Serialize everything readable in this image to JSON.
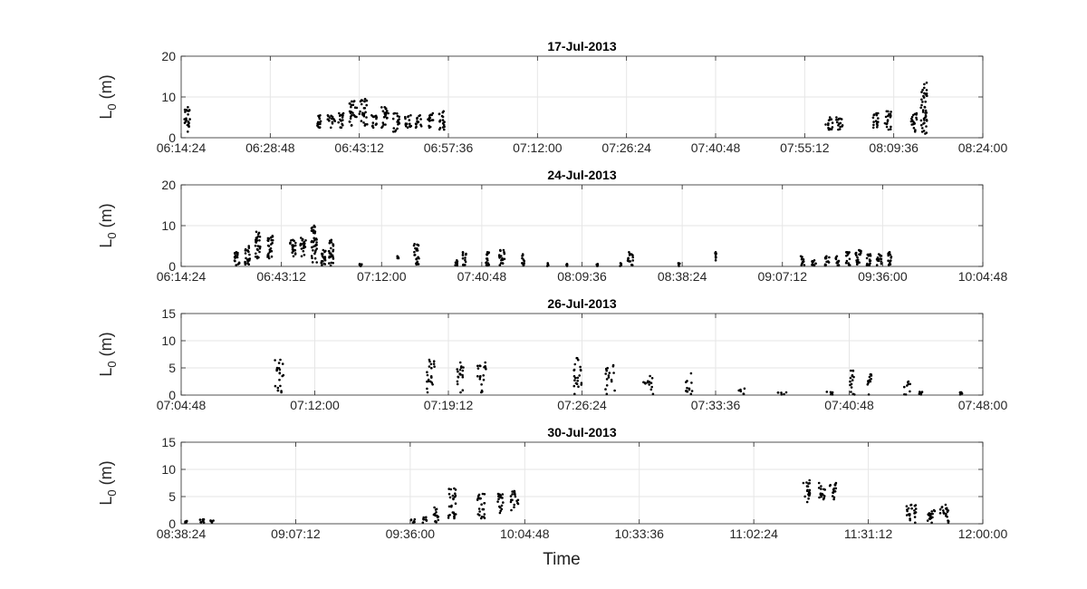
{
  "xlabel": "Time",
  "chart_data": [
    {
      "type": "scatter",
      "title": "17-Jul-2013",
      "ylabel_main": "L",
      "ylabel_sub": "0",
      "ylabel_unit": " (m)",
      "ylim": [
        0,
        20
      ],
      "yticks": [
        0,
        10,
        20
      ],
      "xlim": [
        "06:14:24",
        "08:24:00"
      ],
      "xticks": [
        "06:14:24",
        "06:28:48",
        "06:43:12",
        "06:57:36",
        "07:12:00",
        "07:26:24",
        "07:40:48",
        "07:55:12",
        "08:09:36",
        "08:24:00"
      ],
      "grid": true,
      "clusters": [
        {
          "t": "06:15:20",
          "w": 60,
          "ymin": 1.5,
          "ymax": 7.5
        },
        {
          "t": "06:36:40",
          "w": 60,
          "ymin": 2.5,
          "ymax": 5.5
        },
        {
          "t": "06:38:40",
          "w": 70,
          "ymin": 2.5,
          "ymax": 5.5
        },
        {
          "t": "06:40:20",
          "w": 60,
          "ymin": 2.5,
          "ymax": 6.0
        },
        {
          "t": "06:42:10",
          "w": 80,
          "ymin": 3.0,
          "ymax": 9.0
        },
        {
          "t": "06:43:50",
          "w": 80,
          "ymin": 3.0,
          "ymax": 9.5
        },
        {
          "t": "06:45:40",
          "w": 60,
          "ymin": 2.5,
          "ymax": 5.5
        },
        {
          "t": "06:47:20",
          "w": 70,
          "ymin": 2.5,
          "ymax": 7.5
        },
        {
          "t": "06:49:10",
          "w": 60,
          "ymin": 1.5,
          "ymax": 6.0
        },
        {
          "t": "06:51:10",
          "w": 70,
          "ymin": 2.5,
          "ymax": 5.5
        },
        {
          "t": "06:52:50",
          "w": 60,
          "ymin": 2.5,
          "ymax": 5.5
        },
        {
          "t": "06:54:40",
          "w": 60,
          "ymin": 2.5,
          "ymax": 6.0
        },
        {
          "t": "06:56:30",
          "w": 60,
          "ymin": 2.0,
          "ymax": 6.5
        },
        {
          "t": "07:59:10",
          "w": 70,
          "ymin": 2.0,
          "ymax": 5.0
        },
        {
          "t": "08:00:50",
          "w": 70,
          "ymin": 2.0,
          "ymax": 5.0
        },
        {
          "t": "08:06:40",
          "w": 60,
          "ymin": 2.5,
          "ymax": 6.0
        },
        {
          "t": "08:08:40",
          "w": 60,
          "ymin": 2.0,
          "ymax": 6.5
        },
        {
          "t": "08:12:50",
          "w": 60,
          "ymin": 1.5,
          "ymax": 6.0
        },
        {
          "t": "08:14:30",
          "w": 60,
          "ymin": 1.0,
          "ymax": 13.5
        }
      ]
    },
    {
      "type": "scatter",
      "title": "24-Jul-2013",
      "ylabel_main": "L",
      "ylabel_sub": "0",
      "ylabel_unit": " (m)",
      "ylim": [
        0,
        20
      ],
      "yticks": [
        0,
        10,
        20
      ],
      "xlim": [
        "06:14:24",
        "10:04:48"
      ],
      "xticks": [
        "06:14:24",
        "06:43:12",
        "07:12:00",
        "07:40:48",
        "08:09:36",
        "08:38:24",
        "09:07:12",
        "09:36:00",
        "10:04:48"
      ],
      "grid": true,
      "clusters": [
        {
          "t": "06:30:30",
          "w": 90,
          "ymin": 0.3,
          "ymax": 3.5
        },
        {
          "t": "06:33:30",
          "w": 90,
          "ymin": 0.5,
          "ymax": 5.0
        },
        {
          "t": "06:36:20",
          "w": 100,
          "ymin": 2.0,
          "ymax": 8.5
        },
        {
          "t": "06:40:00",
          "w": 90,
          "ymin": 2.0,
          "ymax": 7.5
        },
        {
          "t": "06:46:30",
          "w": 100,
          "ymin": 2.5,
          "ymax": 6.5
        },
        {
          "t": "06:49:30",
          "w": 100,
          "ymin": 2.5,
          "ymax": 7.0
        },
        {
          "t": "06:52:40",
          "w": 100,
          "ymin": 1.0,
          "ymax": 10.0
        },
        {
          "t": "06:55:10",
          "w": 90,
          "ymin": 0.3,
          "ymax": 4.0
        },
        {
          "t": "06:57:30",
          "w": 80,
          "ymin": 0.2,
          "ymax": 6.5
        },
        {
          "t": "07:06:00",
          "w": 40,
          "ymin": 0.1,
          "ymax": 0.6
        },
        {
          "t": "07:16:40",
          "w": 30,
          "ymin": 2.0,
          "ymax": 2.5
        },
        {
          "t": "07:22:00",
          "w": 100,
          "ymin": 0.5,
          "ymax": 5.5
        },
        {
          "t": "07:33:30",
          "w": 40,
          "ymin": 0.2,
          "ymax": 1.5
        },
        {
          "t": "07:35:50",
          "w": 60,
          "ymin": 0.3,
          "ymax": 3.5
        },
        {
          "t": "07:42:30",
          "w": 60,
          "ymin": 0.2,
          "ymax": 3.5
        },
        {
          "t": "07:46:30",
          "w": 100,
          "ymin": 0.3,
          "ymax": 4.0
        },
        {
          "t": "07:52:40",
          "w": 40,
          "ymin": 0.2,
          "ymax": 3.0
        },
        {
          "t": "07:59:40",
          "w": 30,
          "ymin": 0.1,
          "ymax": 0.8
        },
        {
          "t": "08:05:10",
          "w": 30,
          "ymin": 0.1,
          "ymax": 0.6
        },
        {
          "t": "08:14:00",
          "w": 30,
          "ymin": 0.1,
          "ymax": 0.6
        },
        {
          "t": "08:20:40",
          "w": 40,
          "ymin": 0.1,
          "ymax": 0.8
        },
        {
          "t": "08:23:30",
          "w": 90,
          "ymin": 0.3,
          "ymax": 3.5
        },
        {
          "t": "08:37:20",
          "w": 40,
          "ymin": 0.1,
          "ymax": 0.8
        },
        {
          "t": "08:48:00",
          "w": 30,
          "ymin": 1.5,
          "ymax": 3.5
        },
        {
          "t": "09:13:00",
          "w": 60,
          "ymin": 0.3,
          "ymax": 2.5
        },
        {
          "t": "09:16:10",
          "w": 80,
          "ymin": 0.2,
          "ymax": 1.5
        },
        {
          "t": "09:20:00",
          "w": 80,
          "ymin": 0.2,
          "ymax": 2.5
        },
        {
          "t": "09:23:00",
          "w": 60,
          "ymin": 0.2,
          "ymax": 2.5
        },
        {
          "t": "09:26:00",
          "w": 80,
          "ymin": 0.3,
          "ymax": 3.5
        },
        {
          "t": "09:29:00",
          "w": 100,
          "ymin": 0.5,
          "ymax": 4.0
        },
        {
          "t": "09:32:00",
          "w": 80,
          "ymin": 0.3,
          "ymax": 3.0
        },
        {
          "t": "09:35:00",
          "w": 80,
          "ymin": 0.3,
          "ymax": 3.0
        },
        {
          "t": "09:38:00",
          "w": 60,
          "ymin": 0.3,
          "ymax": 3.5
        }
      ]
    },
    {
      "type": "scatter",
      "title": "26-Jul-2013",
      "ylabel_main": "L",
      "ylabel_sub": "0",
      "ylabel_unit": " (m)",
      "ylim": [
        0,
        15
      ],
      "yticks": [
        0,
        5,
        10,
        15
      ],
      "xlim": [
        "07:04:48",
        "07:48:00"
      ],
      "xticks": [
        "07:04:48",
        "07:12:00",
        "07:19:12",
        "07:26:24",
        "07:33:36",
        "07:40:48",
        "07:48:00"
      ],
      "grid": true,
      "clusters": [
        {
          "t": "07:10:05",
          "w": 30,
          "ymin": 0.5,
          "ymax": 6.5
        },
        {
          "t": "07:18:15",
          "w": 25,
          "ymin": 0.5,
          "ymax": 6.5
        },
        {
          "t": "07:19:50",
          "w": 25,
          "ymin": 0.5,
          "ymax": 6.0
        },
        {
          "t": "07:21:00",
          "w": 28,
          "ymin": 0.5,
          "ymax": 6.0
        },
        {
          "t": "07:26:10",
          "w": 25,
          "ymin": 0.2,
          "ymax": 6.8
        },
        {
          "t": "07:27:55",
          "w": 30,
          "ymin": 0.2,
          "ymax": 5.5
        },
        {
          "t": "07:30:00",
          "w": 35,
          "ymin": 0.2,
          "ymax": 3.5
        },
        {
          "t": "07:32:10",
          "w": 25,
          "ymin": 0.2,
          "ymax": 4.0
        },
        {
          "t": "07:35:00",
          "w": 25,
          "ymin": 0.2,
          "ymax": 1.2
        },
        {
          "t": "07:37:10",
          "w": 30,
          "ymin": 0.1,
          "ymax": 0.5
        },
        {
          "t": "07:39:40",
          "w": 30,
          "ymin": 0.1,
          "ymax": 0.6
        },
        {
          "t": "07:41:00",
          "w": 20,
          "ymin": 0.1,
          "ymax": 4.5
        },
        {
          "t": "07:41:55",
          "w": 15,
          "ymin": 0.1,
          "ymax": 3.8
        },
        {
          "t": "07:43:55",
          "w": 20,
          "ymin": 0.1,
          "ymax": 2.5
        },
        {
          "t": "07:44:40",
          "w": 15,
          "ymin": 0.1,
          "ymax": 0.6
        },
        {
          "t": "07:46:50",
          "w": 8,
          "ymin": 0.1,
          "ymax": 0.5
        }
      ]
    },
    {
      "type": "scatter",
      "title": "30-Jul-2013",
      "ylabel_main": "L",
      "ylabel_sub": "0",
      "ylabel_unit": " (m)",
      "ylim": [
        0,
        15
      ],
      "yticks": [
        0,
        5,
        10,
        15
      ],
      "xlim": [
        "08:38:24",
        "12:00:00"
      ],
      "xticks": [
        "08:38:24",
        "09:07:12",
        "09:36:00",
        "10:04:48",
        "10:33:36",
        "11:02:24",
        "11:31:12",
        "12:00:00"
      ],
      "grid": true,
      "clusters": [
        {
          "t": "08:39:40",
          "w": 30,
          "ymin": 0.2,
          "ymax": 0.5
        },
        {
          "t": "08:43:40",
          "w": 80,
          "ymin": 0.2,
          "ymax": 0.8
        },
        {
          "t": "08:46:10",
          "w": 50,
          "ymin": 0.2,
          "ymax": 0.6
        },
        {
          "t": "09:36:40",
          "w": 60,
          "ymin": 0.2,
          "ymax": 0.8
        },
        {
          "t": "09:39:40",
          "w": 60,
          "ymin": 0.2,
          "ymax": 1.2
        },
        {
          "t": "09:42:30",
          "w": 80,
          "ymin": 0.3,
          "ymax": 3.0
        },
        {
          "t": "09:46:30",
          "w": 120,
          "ymin": 1.0,
          "ymax": 6.5
        },
        {
          "t": "09:53:50",
          "w": 110,
          "ymin": 1.0,
          "ymax": 5.5
        },
        {
          "t": "09:58:40",
          "w": 90,
          "ymin": 2.0,
          "ymax": 5.5
        },
        {
          "t": "10:02:10",
          "w": 120,
          "ymin": 2.5,
          "ymax": 6.0
        },
        {
          "t": "11:15:40",
          "w": 100,
          "ymin": 4.0,
          "ymax": 8.0
        },
        {
          "t": "11:19:30",
          "w": 100,
          "ymin": 4.5,
          "ymax": 7.5
        },
        {
          "t": "11:22:20",
          "w": 100,
          "ymin": 4.5,
          "ymax": 7.5
        },
        {
          "t": "11:42:00",
          "w": 150,
          "ymin": 0.2,
          "ymax": 3.5
        },
        {
          "t": "11:47:00",
          "w": 120,
          "ymin": 0.2,
          "ymax": 2.5
        },
        {
          "t": "11:50:20",
          "w": 130,
          "ymin": 0.2,
          "ymax": 3.5
        }
      ]
    }
  ]
}
